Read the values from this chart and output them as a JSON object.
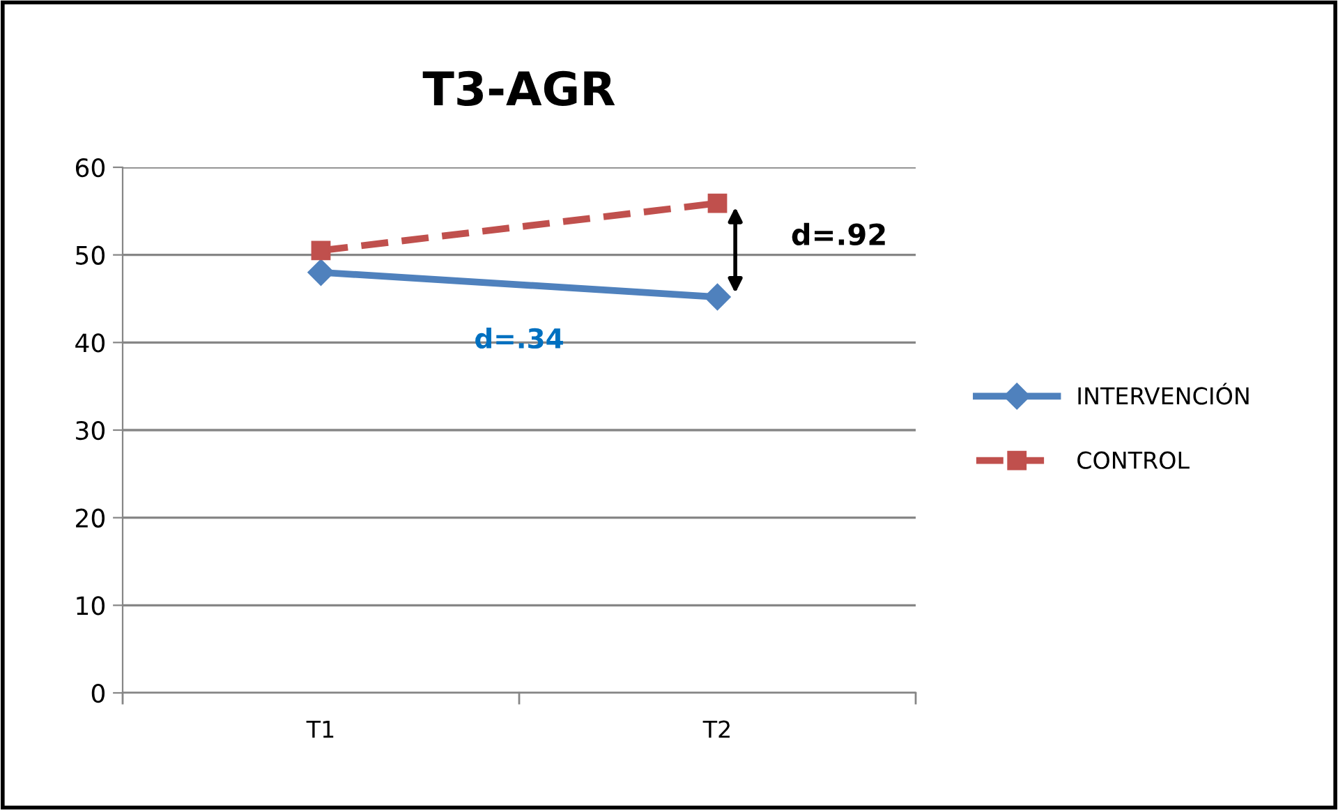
{
  "chart_data": {
    "type": "line",
    "title": "T3-AGR",
    "categories": [
      "T1",
      "T2"
    ],
    "series": [
      {
        "name": "INTERVENCIÓN",
        "color": "#4f81bd",
        "values": [
          48,
          45.2
        ],
        "marker": "diamond",
        "line_style": "solid"
      },
      {
        "name": "CONTROL",
        "color": "#c0504d",
        "values": [
          50.5,
          55.9
        ],
        "marker": "square",
        "line_style": "dashed"
      }
    ],
    "ylim": [
      0,
      60
    ],
    "yticks": [
      0,
      10,
      20,
      30,
      40,
      50,
      60
    ],
    "grid": "y",
    "legend": "right",
    "annotations": [
      "d=.34",
      "d=.92"
    ]
  }
}
